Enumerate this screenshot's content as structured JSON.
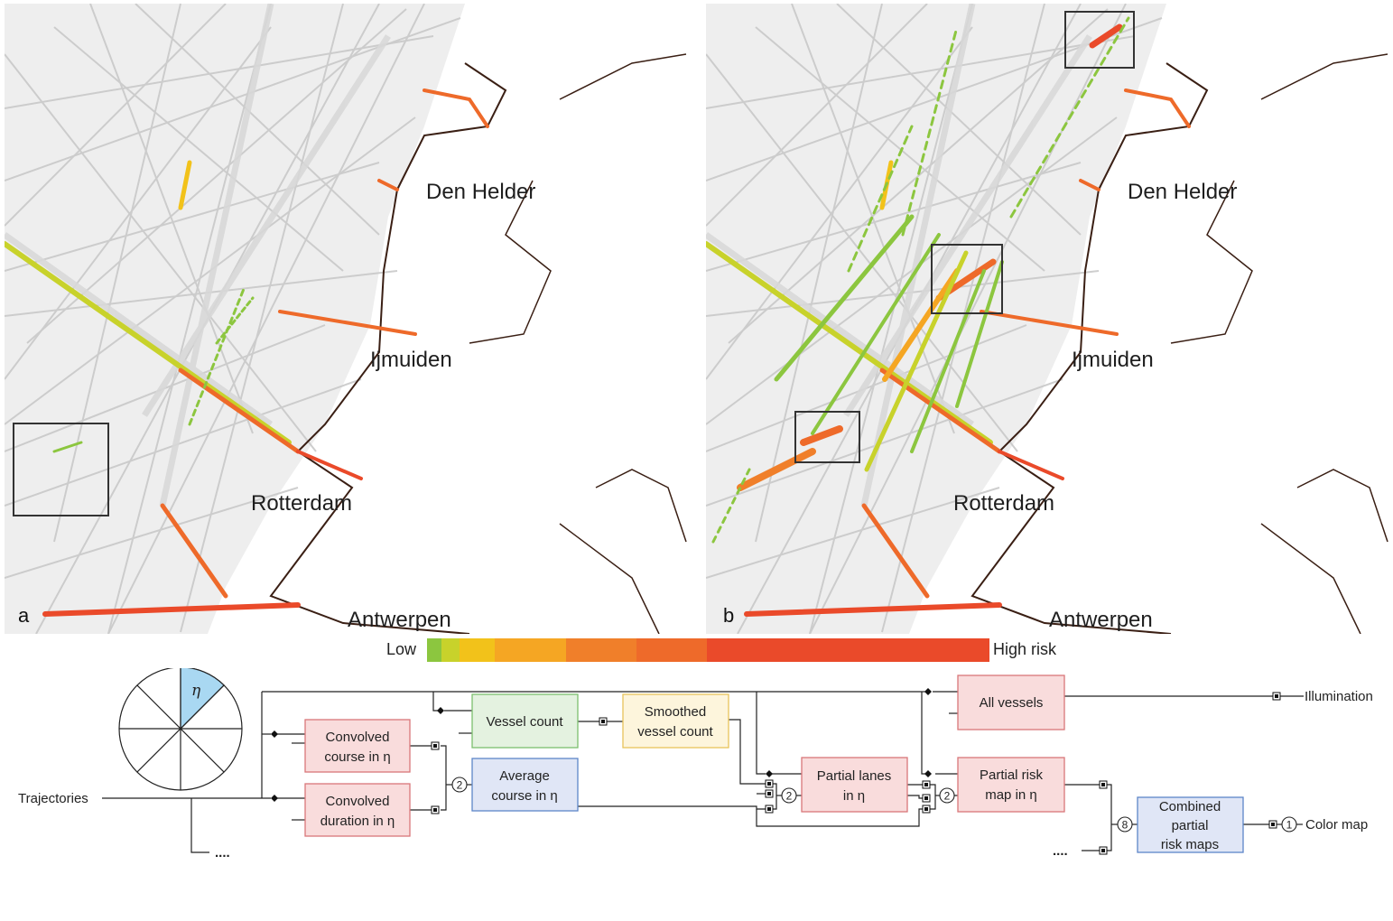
{
  "panels": [
    {
      "id": "a",
      "letter": "a",
      "cities": [
        {
          "name": "Den Helder"
        },
        {
          "name": "Ijmuiden"
        },
        {
          "name": "Rotterdam"
        },
        {
          "name": "Antwerpen"
        }
      ]
    },
    {
      "id": "b",
      "letter": "b",
      "cities": [
        {
          "name": "Den Helder"
        },
        {
          "name": "Ijmuiden"
        },
        {
          "name": "Rotterdam"
        },
        {
          "name": "Antwerpen"
        }
      ]
    }
  ],
  "legend": {
    "low_label": "Low",
    "high_label": "High risk",
    "colors": [
      "#8cc63f",
      "#c8d22b",
      "#f2c21a",
      "#f5a623",
      "#f07f2a",
      "#ee6a2a",
      "#ea4a2a"
    ]
  },
  "colors": {
    "red_box_fill": "#f9dcdc",
    "red_box_stroke": "#d9777a",
    "green_box_fill": "#e4f2e0",
    "green_box_stroke": "#7cbf6e",
    "yellow_box_fill": "#fdf5dc",
    "yellow_box_stroke": "#e8c45a",
    "blue_box_fill": "#e0e6f6",
    "blue_box_stroke": "#5d86c8",
    "sector_highlight": "#a9d8f2"
  },
  "flow": {
    "sector_label": "η",
    "inputs": {
      "trajectories": "Trajectories"
    },
    "outputs": {
      "illumination": "Illumination",
      "color_map": "Color map"
    },
    "ellipsis": "....",
    "boxes": {
      "convolved_course": {
        "line1": "Convolved",
        "line2": "course in η"
      },
      "convolved_duration": {
        "line1": "Convolved",
        "line2": "duration in η"
      },
      "vessel_count": {
        "line1": "Vessel count"
      },
      "smoothed_vessel_count": {
        "line1": "Smoothed",
        "line2": "vessel count"
      },
      "average_course": {
        "line1": "Average",
        "line2": "course in η"
      },
      "all_vessels": {
        "line1": "All vessels"
      },
      "partial_lanes": {
        "line1": "Partial lanes",
        "line2": "in η"
      },
      "partial_risk_map": {
        "line1": "Partial risk",
        "line2": "map in η"
      },
      "combined_risk_maps": {
        "line1": "Combined",
        "line2": "partial",
        "line3": "risk maps"
      }
    },
    "counters": {
      "avg_course_inputs": "2",
      "partial_lanes_inputs": "2",
      "partial_risk_inputs": "2",
      "combined_inputs": "8",
      "color_map_inputs": "1"
    }
  }
}
